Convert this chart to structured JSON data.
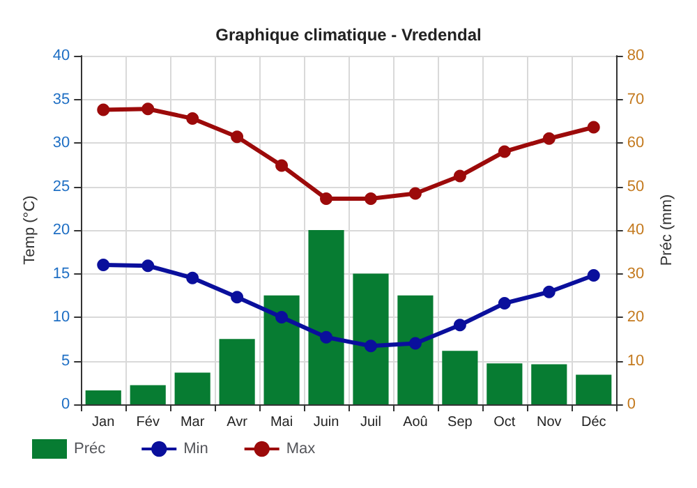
{
  "chart_data": {
    "type": "bar",
    "title": "Graphique climatique - Vredendal",
    "ylabel": "Temp (°C)",
    "y2label": "Préc (mm)",
    "categories": [
      "Jan",
      "Fév",
      "Mar",
      "Avr",
      "Mai",
      "Juin",
      "Juil",
      "Aoû",
      "Sep",
      "Oct",
      "Nov",
      "Déc"
    ],
    "series": [
      {
        "name": "Préc",
        "axis": "y2",
        "color": "#077c32",
        "values": [
          3.2,
          4.4,
          7.3,
          15,
          25,
          40,
          30,
          25,
          12.3,
          9.4,
          9.2,
          6.8
        ]
      },
      {
        "name": "Min",
        "type": "line",
        "color": "#0a0f9c",
        "values": [
          16,
          15.9,
          14.5,
          12.3,
          10,
          7.7,
          6.7,
          7,
          9.1,
          11.6,
          12.9,
          14.8
        ]
      },
      {
        "name": "Max",
        "type": "line",
        "color": "#9c0a0a",
        "values": [
          33.8,
          33.9,
          32.8,
          30.7,
          27.4,
          23.6,
          23.6,
          24.2,
          26.2,
          29,
          30.5,
          31.8
        ]
      }
    ],
    "ylim": [
      0,
      40
    ],
    "yticks": [
      0,
      5,
      10,
      15,
      20,
      25,
      30,
      35,
      40
    ],
    "y2lim": [
      0,
      80
    ],
    "y2ticks": [
      0,
      10,
      20,
      30,
      40,
      50,
      60,
      70,
      80
    ],
    "grid": true,
    "legend": "bottom left",
    "marker": "circle",
    "line_style": "solid"
  }
}
